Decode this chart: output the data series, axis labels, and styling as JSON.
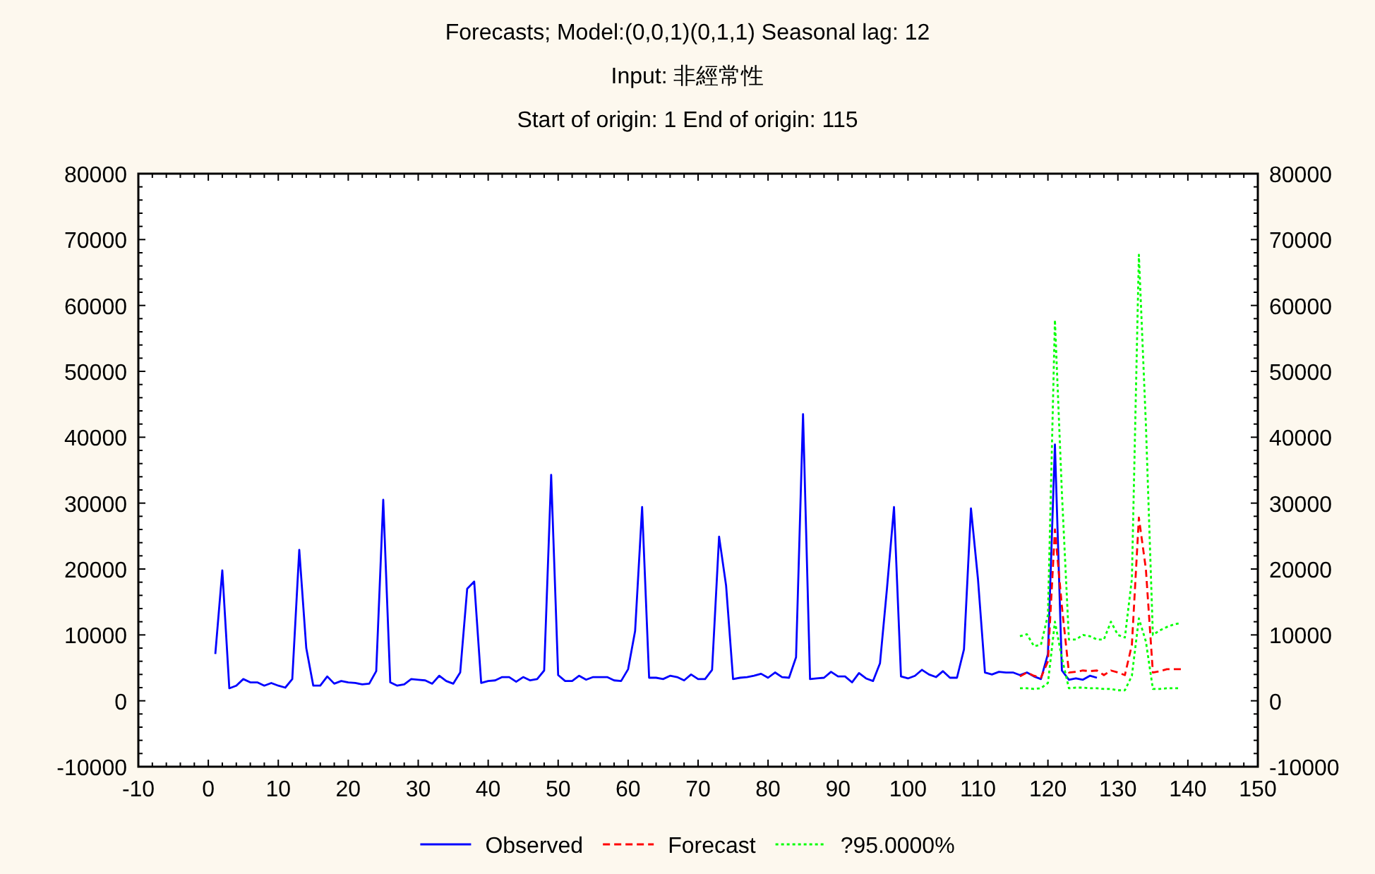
{
  "chart_data": {
    "type": "line",
    "title": "Forecasts; Model:(0,0,1)(0,1,1) Seasonal lag: 12",
    "subtitle": "Input: 非經常性",
    "annotations": [
      "Start of origin: 1 End of origin: 115"
    ],
    "xlim": [
      -10,
      150
    ],
    "xticks": [
      -10,
      0,
      10,
      20,
      30,
      40,
      50,
      60,
      70,
      80,
      90,
      100,
      110,
      120,
      130,
      140,
      150
    ],
    "ylim": [
      -10000,
      80000
    ],
    "yticks": [
      -10000,
      0,
      10000,
      20000,
      30000,
      40000,
      50000,
      60000,
      70000,
      80000
    ],
    "y2lim": [
      -10000,
      80000
    ],
    "y2ticks": [
      -10000,
      0,
      10000,
      20000,
      30000,
      40000,
      50000,
      60000,
      70000,
      80000
    ],
    "grid": false,
    "legend": "bottom",
    "series": [
      {
        "name": "Observed",
        "color": "#0000ff",
        "line_style": "solid",
        "x": [
          1,
          2,
          3,
          4,
          5,
          6,
          7,
          8,
          9,
          10,
          11,
          12,
          13,
          14,
          15,
          16,
          17,
          18,
          19,
          20,
          21,
          22,
          23,
          24,
          25,
          26,
          27,
          28,
          29,
          30,
          31,
          32,
          33,
          34,
          35,
          36,
          37,
          38,
          39,
          40,
          41,
          42,
          43,
          44,
          45,
          46,
          47,
          48,
          49,
          50,
          51,
          52,
          53,
          54,
          55,
          56,
          57,
          58,
          59,
          60,
          61,
          62,
          63,
          64,
          65,
          66,
          67,
          68,
          69,
          70,
          71,
          72,
          73,
          74,
          75,
          76,
          77,
          78,
          79,
          80,
          81,
          82,
          83,
          84,
          85,
          86,
          87,
          88,
          89,
          90,
          91,
          92,
          93,
          94,
          95,
          96,
          97,
          98,
          99,
          100,
          101,
          102,
          103,
          104,
          105,
          106,
          107,
          108,
          109,
          110,
          111,
          112,
          113,
          114,
          115,
          116,
          117,
          118,
          119,
          120,
          121,
          122,
          123,
          124,
          125,
          126,
          127
        ],
        "values": [
          7100,
          19800,
          1900,
          2300,
          3300,
          2800,
          2800,
          2300,
          2700,
          2300,
          2000,
          3300,
          22900,
          8000,
          2300,
          2300,
          3700,
          2600,
          3000,
          2800,
          2700,
          2500,
          2600,
          4500,
          30500,
          2800,
          2300,
          2500,
          3300,
          3200,
          3100,
          2600,
          3800,
          3000,
          2600,
          4300,
          17000,
          18100,
          2700,
          3000,
          3100,
          3600,
          3600,
          2900,
          3600,
          3100,
          3300,
          4600,
          34300,
          3900,
          3000,
          3000,
          3800,
          3200,
          3600,
          3600,
          3600,
          3100,
          3000,
          4800,
          10600,
          29400,
          3500,
          3500,
          3300,
          3800,
          3600,
          3100,
          4000,
          3300,
          3300,
          4700,
          24900,
          17500,
          3300,
          3500,
          3600,
          3800,
          4100,
          3500,
          4300,
          3600,
          3500,
          6600,
          43500,
          3300,
          3400,
          3500,
          4400,
          3700,
          3700,
          2800,
          4200,
          3400,
          3000,
          5700,
          17100,
          29400,
          3700,
          3400,
          3800,
          4700,
          4000,
          3600,
          4500,
          3500,
          3500,
          7800,
          29200,
          18500,
          4300,
          4000,
          4400,
          4300,
          4300,
          3900,
          4300,
          3700,
          3300,
          7100,
          38900,
          4600,
          3200,
          3400,
          3200,
          3800,
          3500
        ]
      },
      {
        "name": "Forecast",
        "color": "#ff0000",
        "line_style": "dashed",
        "x": [
          116,
          117,
          118,
          119,
          120,
          121,
          122,
          123,
          124,
          125,
          126,
          127,
          128,
          129,
          130,
          131,
          132,
          133,
          134,
          135,
          136,
          137,
          138,
          139
        ],
        "values": [
          3700,
          4300,
          3800,
          3500,
          6000,
          26000,
          14300,
          4300,
          4400,
          4600,
          4500,
          4600,
          3900,
          4600,
          4300,
          3900,
          8500,
          27800,
          20000,
          4300,
          4500,
          4800,
          4800,
          4800
        ]
      },
      {
        "name": "?95.0000%",
        "color": "#00ff00",
        "line_style": "dotted",
        "x": [
          116,
          117,
          118,
          119,
          120,
          121,
          122,
          123,
          124,
          125,
          126,
          127,
          128,
          129,
          130,
          131,
          132,
          133,
          134,
          135,
          136,
          137,
          138,
          139
        ],
        "values": [
          9800,
          10100,
          8300,
          8500,
          13000,
          57800,
          31500,
          9300,
          9300,
          10000,
          9800,
          9300,
          9300,
          12000,
          10000,
          9600,
          18500,
          67700,
          42000,
          10000,
          10700,
          11200,
          11600,
          11800
        ]
      },
      {
        "color": "#00ff00",
        "line_style": "dotted",
        "x": [
          116,
          117,
          118,
          119,
          120,
          121,
          122,
          123,
          124,
          125,
          126,
          127,
          128,
          129,
          130,
          131,
          132,
          133,
          134,
          135,
          136,
          137,
          138,
          139
        ],
        "values": [
          1900,
          1900,
          1800,
          1900,
          2700,
          12000,
          6500,
          1900,
          2000,
          2000,
          1900,
          1900,
          1800,
          1800,
          1600,
          1600,
          3800,
          12500,
          9000,
          1800,
          1800,
          1900,
          1900,
          1900
        ]
      }
    ]
  }
}
